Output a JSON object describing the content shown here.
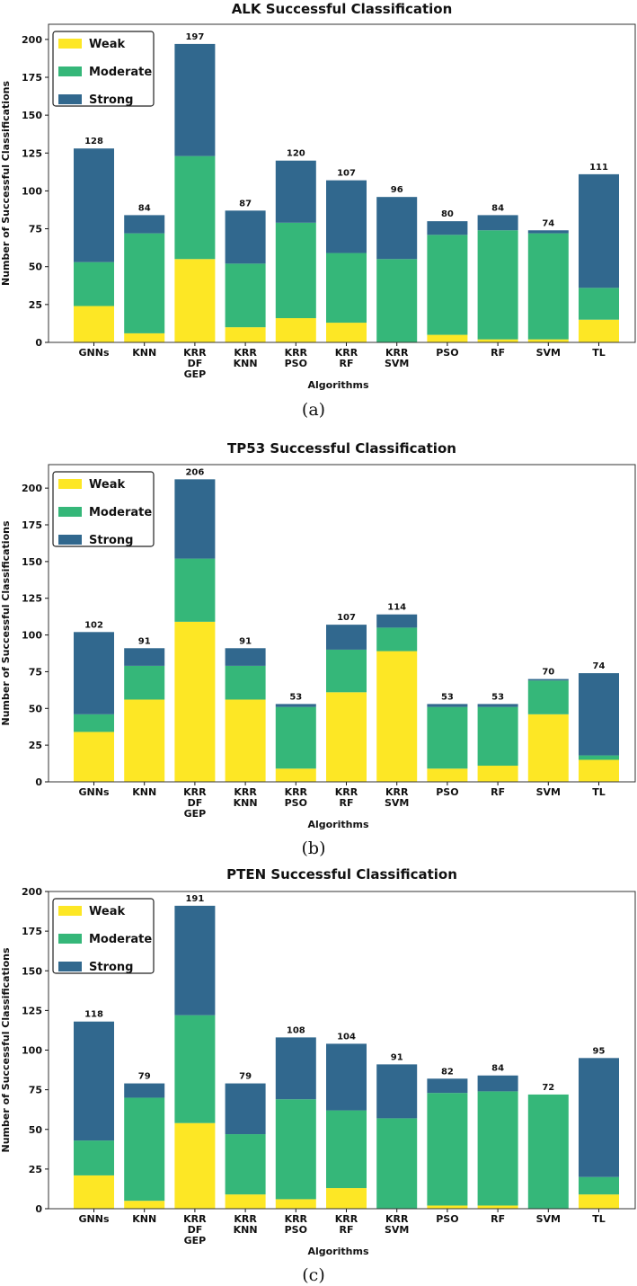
{
  "chart_data": [
    {
      "type": "bar",
      "stacked": true,
      "title": "ALK Successful Classification",
      "xlabel": "Algorithms",
      "ylabel": "Number of Successful Classifications",
      "caption": "(a)",
      "ylim": [
        0,
        210
      ],
      "yticks": [
        0,
        25,
        50,
        75,
        100,
        125,
        150,
        175,
        200
      ],
      "categories": [
        "GNNs",
        "KNN",
        "KRR\nDF\nGEP",
        "KRR\nKNN",
        "KRR\nPSO",
        "KRR\nRF",
        "KRR\nSVM",
        "PSO",
        "RF",
        "SVM",
        "TL"
      ],
      "series": [
        {
          "name": "Weak",
          "color": "#fde725",
          "values": [
            24,
            6,
            55,
            10,
            16,
            13,
            0,
            5,
            2,
            2,
            15
          ]
        },
        {
          "name": "Moderate",
          "color": "#35b779",
          "values": [
            29,
            66,
            68,
            42,
            63,
            46,
            55,
            66,
            72,
            70,
            21
          ]
        },
        {
          "name": "Strong",
          "color": "#31688e",
          "values": [
            75,
            12,
            74,
            35,
            41,
            48,
            41,
            9,
            10,
            2,
            75
          ]
        }
      ],
      "totals": [
        "128",
        "84",
        "197",
        "87",
        "120",
        "107",
        "96",
        "80",
        "84",
        "74",
        "111"
      ],
      "legend_position": "top-left"
    },
    {
      "type": "bar",
      "stacked": true,
      "title": "TP53 Successful Classification",
      "xlabel": "Algorithms",
      "ylabel": "Number of Successful Classifications",
      "caption": "(b)",
      "ylim": [
        0,
        216
      ],
      "yticks": [
        0,
        25,
        50,
        75,
        100,
        125,
        150,
        175,
        200
      ],
      "categories": [
        "GNNs",
        "KNN",
        "KRR\nDF\nGEP",
        "KRR\nKNN",
        "KRR\nPSO",
        "KRR\nRF",
        "KRR\nSVM",
        "PSO",
        "RF",
        "SVM",
        "TL"
      ],
      "series": [
        {
          "name": "Weak",
          "color": "#fde725",
          "values": [
            34,
            56,
            109,
            56,
            9,
            61,
            89,
            9,
            11,
            46,
            15
          ]
        },
        {
          "name": "Moderate",
          "color": "#35b779",
          "values": [
            12,
            23,
            43,
            23,
            42,
            29,
            16,
            42,
            40,
            23,
            3
          ]
        },
        {
          "name": "Strong",
          "color": "#31688e",
          "values": [
            56,
            12,
            54,
            12,
            2,
            17,
            9,
            2,
            2,
            1,
            56
          ]
        }
      ],
      "totals": [
        "102",
        "91",
        "206",
        "91",
        "53",
        "107",
        "114",
        "53",
        "53",
        "70",
        "74"
      ],
      "legend_position": "top-left"
    },
    {
      "type": "bar",
      "stacked": true,
      "title": "PTEN Successful Classification",
      "xlabel": "Algorithms",
      "ylabel": "Number of Successful Classifications",
      "caption": "(c)",
      "ylim": [
        0,
        200
      ],
      "yticks": [
        0,
        25,
        50,
        75,
        100,
        125,
        150,
        175,
        200
      ],
      "categories": [
        "GNNs",
        "KNN",
        "KRR\nDF\nGEP",
        "KRR\nKNN",
        "KRR\nPSO",
        "KRR\nRF",
        "KRR\nSVM",
        "PSO",
        "RF",
        "SVM",
        "TL"
      ],
      "series": [
        {
          "name": "Weak",
          "color": "#fde725",
          "values": [
            21,
            5,
            54,
            9,
            6,
            13,
            0,
            2,
            2,
            0,
            9
          ]
        },
        {
          "name": "Moderate",
          "color": "#35b779",
          "values": [
            22,
            65,
            68,
            38,
            63,
            49,
            57,
            71,
            72,
            72,
            11
          ]
        },
        {
          "name": "Strong",
          "color": "#31688e",
          "values": [
            75,
            9,
            69,
            32,
            39,
            42,
            34,
            9,
            10,
            0,
            75
          ]
        }
      ],
      "totals": [
        "118",
        "79",
        "191",
        "79",
        "108",
        "104",
        "91",
        "82",
        "84",
        "72",
        "95"
      ],
      "legend_position": "top-left"
    }
  ]
}
